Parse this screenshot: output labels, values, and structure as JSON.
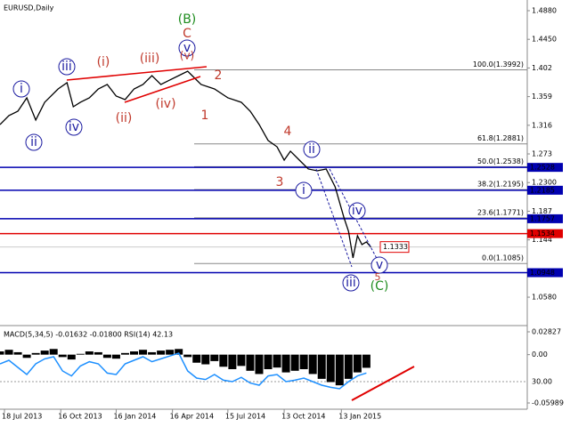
{
  "title": "EURUSD,Daily",
  "annotations": [
    "(B)",
    "C",
    "v",
    "(v)",
    "i",
    "ii",
    "iii",
    "iv",
    "(i)",
    "(ii)",
    "(iii)",
    "(iv)",
    "2",
    "1",
    "4",
    "3",
    "ii",
    "i",
    "iv",
    "iii",
    "v",
    "5",
    "(C)"
  ],
  "chart_data": [
    {
      "type": "line",
      "color": "#000000",
      "x": [
        0,
        10,
        20,
        30,
        40,
        50,
        65,
        75,
        82,
        90,
        100,
        110,
        120,
        130,
        140,
        150,
        160,
        170,
        180,
        190,
        200,
        210,
        215,
        225,
        240,
        255,
        270,
        280,
        290,
        300,
        310,
        318,
        325,
        335,
        345,
        355,
        365,
        375,
        385,
        390,
        395,
        400,
        405,
        410,
        415
      ],
      "values": [
        1.3171,
        1.3305,
        1.3371,
        1.3572,
        1.3238,
        1.3505,
        1.3705,
        1.3799,
        1.3438,
        1.3505,
        1.3572,
        1.3705,
        1.3772,
        1.3598,
        1.3545,
        1.3705,
        1.3772,
        1.3905,
        1.3772,
        1.3839,
        1.3905,
        1.3972,
        1.3905,
        1.3772,
        1.3705,
        1.3572,
        1.3505,
        1.3371,
        1.3171,
        1.2931,
        1.2837,
        1.2637,
        1.2771,
        1.2637,
        1.2504,
        1.2477,
        1.2504,
        1.2237,
        1.1769,
        1.1569,
        1.1169,
        1.1502,
        1.1369,
        1.1409,
        1.1333
      ],
      "xlim": [
        0,
        590
      ],
      "xticks": [
        {
          "value": 5,
          "label": "18 Jul 2013"
        },
        {
          "value": 68,
          "label": "16 Oct 2013"
        },
        {
          "value": 130,
          "label": "16 Jan 2014"
        },
        {
          "value": 193,
          "label": "16 Apr 2014"
        },
        {
          "value": 255,
          "label": "15 Jul 2014"
        },
        {
          "value": 318,
          "label": "13 Oct 2014"
        },
        {
          "value": 382,
          "label": "13 Jan 2015"
        }
      ],
      "ylim": [
        1.0167,
        1.504
      ],
      "yticks": [
        {
          "value": 1.488,
          "label": "1.4880"
        },
        {
          "value": 1.445,
          "label": "1.4450"
        },
        1.402,
        1.359,
        1.316,
        1.273,
        {
          "value": 1.23,
          "label": "1.2300"
        },
        1.187,
        1.144,
        {
          "value": 1.058,
          "label": "1.0580"
        }
      ],
      "fib_levels": [
        {
          "value": 1.3992,
          "label": "100.0(1.3992)"
        },
        {
          "value": 1.2881,
          "label": "61.8(1.2881)"
        },
        {
          "value": 1.2538,
          "label": "50.0(1.2538)"
        },
        {
          "value": 1.2195,
          "label": "38.2(1.2195)"
        },
        {
          "value": 1.1771,
          "label": "23.6(1.1771)"
        },
        {
          "value": 1.1085,
          "label": "0.0(1.1085)"
        }
      ],
      "levels": [
        {
          "value": 1.2528,
          "label": "1.2528",
          "color": "#0000b0"
        },
        {
          "value": 1.2185,
          "label": "1.2185",
          "color": "#0000b0"
        },
        {
          "value": 1.1757,
          "label": "1.1757",
          "color": "#0000b0"
        },
        {
          "value": 1.1534,
          "label": "1.1534",
          "color": "#e00000"
        },
        {
          "value": 1.0948,
          "label": "1.0948",
          "color": "#0000b0"
        }
      ],
      "last_price": {
        "value": 1.1333,
        "label": "1.1333"
      }
    },
    {
      "type": "bar",
      "title": "MACD(5,34,5) -0.01632 -0.01800 RSI(14) 42.13",
      "x": [
        0,
        10,
        20,
        30,
        40,
        50,
        60,
        70,
        80,
        90,
        100,
        110,
        120,
        130,
        140,
        150,
        160,
        170,
        180,
        190,
        200,
        210,
        220,
        230,
        240,
        250,
        260,
        270,
        280,
        290,
        300,
        310,
        320,
        330,
        340,
        350,
        360,
        370,
        380,
        390,
        400,
        410
      ],
      "histogram": {
        "color": "#000000",
        "values": [
          0.004,
          0.006,
          0.003,
          -0.004,
          0.002,
          0.005,
          0.007,
          -0.003,
          -0.006,
          0.001,
          0.004,
          0.003,
          -0.004,
          -0.005,
          0.002,
          0.004,
          0.006,
          0.003,
          0.005,
          0.006,
          0.007,
          -0.003,
          -0.01,
          -0.012,
          -0.008,
          -0.015,
          -0.018,
          -0.014,
          -0.02,
          -0.024,
          -0.018,
          -0.016,
          -0.022,
          -0.02,
          -0.018,
          -0.024,
          -0.03,
          -0.034,
          -0.038,
          -0.03,
          -0.022,
          -0.01632
        ]
      },
      "rsi": {
        "color": "#1e90ff",
        "axis": "y2",
        "values": [
          55,
          60,
          50,
          40,
          55,
          62,
          65,
          45,
          38,
          52,
          58,
          55,
          42,
          40,
          55,
          60,
          65,
          58,
          62,
          66,
          70,
          45,
          35,
          33,
          40,
          32,
          30,
          36,
          28,
          25,
          38,
          40,
          30,
          32,
          35,
          30,
          25,
          22,
          20,
          30,
          38,
          42.13
        ]
      },
      "xlim": [
        0,
        590
      ],
      "ylim": [
        -0.05989,
        0.02827
      ],
      "yticks": [
        0.02827,
        {
          "value": 0,
          "label": "0.00"
        },
        -0.05989
      ],
      "y2lim": [
        0,
        100
      ],
      "y2ticks": [
        {
          "value": 30,
          "label": "30.00"
        }
      ]
    }
  ]
}
